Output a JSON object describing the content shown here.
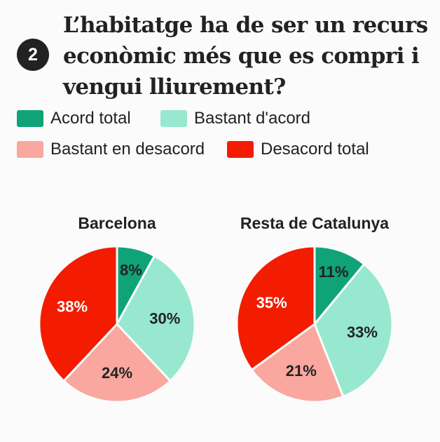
{
  "question": {
    "number": "2",
    "title": "L’habitatge ha de ser un recurs econòmic més que es compri i vengui lliurement?"
  },
  "legend": [
    {
      "label": "Acord total",
      "color": "#10a378"
    },
    {
      "label": "Bastant d'acord",
      "color": "#97e8cf"
    },
    {
      "label": "Bastant en desacord",
      "color": "#f9a79f"
    },
    {
      "label": "Desacord total",
      "color": "#f41c00"
    }
  ],
  "chart_data": [
    {
      "type": "pie",
      "title": "Barcelona",
      "categories": [
        "Acord total",
        "Bastant d'acord",
        "Bastant en desacord",
        "Desacord total"
      ],
      "values": [
        8,
        30,
        24,
        38
      ],
      "labels": [
        "8%",
        "30%",
        "24%",
        "38%"
      ],
      "colors": [
        "#10a378",
        "#97e8cf",
        "#f9a79f",
        "#f41c00"
      ]
    },
    {
      "type": "pie",
      "title": "Resta de Catalunya",
      "categories": [
        "Acord total",
        "Bastant d'acord",
        "Bastant en desacord",
        "Desacord total"
      ],
      "values": [
        11,
        33,
        21,
        35
      ],
      "labels": [
        "11%",
        "33%",
        "21%",
        "35%"
      ],
      "colors": [
        "#10a378",
        "#97e8cf",
        "#f9a79f",
        "#f41c00"
      ]
    }
  ]
}
